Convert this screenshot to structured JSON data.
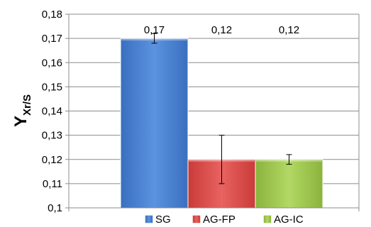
{
  "chart_data": {
    "type": "bar",
    "title": "",
    "xlabel": "",
    "ylabel": {
      "main": "Y",
      "subscript": "Xr/S"
    },
    "ylim": [
      0.1,
      0.18
    ],
    "yticks": [
      0.1,
      0.11,
      0.12,
      0.13,
      0.14,
      0.15,
      0.16,
      0.17,
      0.18
    ],
    "ytick_labels": [
      "0,1",
      "0,11",
      "0,12",
      "0,13",
      "0,14",
      "0,15",
      "0,16",
      "0,17",
      "0,18"
    ],
    "grid": true,
    "legend_position": "bottom",
    "series": [
      {
        "name": "SG",
        "value": 0.17,
        "label": "0,17",
        "error": 0.002,
        "color": "#4a7fcf"
      },
      {
        "name": "AG-FP",
        "value": 0.12,
        "label": "0,12",
        "error": 0.01,
        "color": "#d94a47"
      },
      {
        "name": "AG-IC",
        "value": 0.12,
        "label": "0,12",
        "error": 0.002,
        "color": "#9bc24a"
      }
    ]
  }
}
